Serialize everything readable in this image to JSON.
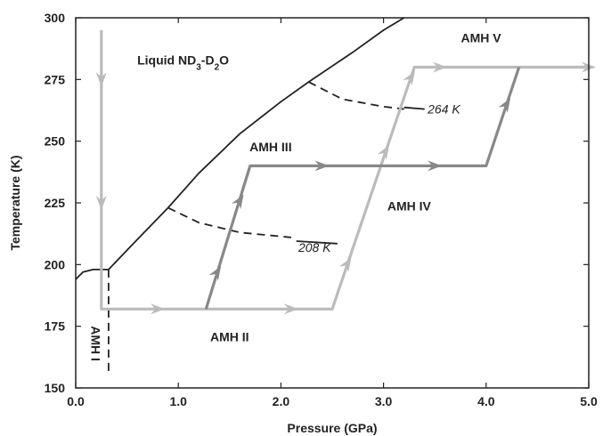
{
  "chart_data": {
    "type": "line",
    "title": "",
    "xlabel": "Pressure (GPa)",
    "ylabel": "Temperature (K)",
    "xlim": [
      0.0,
      5.0
    ],
    "ylim": [
      150,
      300
    ],
    "x_ticks": [
      "0.0",
      "1.0",
      "2.0",
      "3.0",
      "4.0",
      "5.0"
    ],
    "y_ticks": [
      "150",
      "175",
      "200",
      "225",
      "250",
      "275",
      "300"
    ],
    "grid": false,
    "phase_labels": [
      {
        "text": "AMH I",
        "x": 0.15,
        "y": 168
      },
      {
        "text": "AMH II",
        "x": 1.5,
        "y": 169
      },
      {
        "text": "AMH III",
        "x": 1.9,
        "y": 246
      },
      {
        "text": "AMH IV",
        "x": 3.25,
        "y": 222
      },
      {
        "text": "AMH V",
        "x": 3.95,
        "y": 290
      }
    ],
    "liquid_label": {
      "prefix": "Liquid ND",
      "sub1": "3",
      "mid": "-D",
      "sub2": "2",
      "suffix": "O",
      "x": 0.6,
      "y": 281
    },
    "annotations": [
      {
        "text": "264 K",
        "x": 3.43,
        "y": 263
      },
      {
        "text": "208 K",
        "x": 2.17,
        "y": 207
      }
    ],
    "series": [
      {
        "role": "liquidus-low",
        "style": "solid",
        "color": "#222222",
        "points": [
          [
            0.0,
            194
          ],
          [
            0.07,
            197
          ],
          [
            0.17,
            198
          ],
          [
            0.32,
            198
          ]
        ]
      },
      {
        "role": "liquidus",
        "style": "solid",
        "color": "#222222",
        "points": [
          [
            0.32,
            198
          ],
          [
            0.55,
            208
          ],
          [
            0.9,
            223
          ],
          [
            1.2,
            237
          ],
          [
            1.6,
            253
          ],
          [
            2.0,
            266
          ],
          [
            2.27,
            274
          ],
          [
            2.7,
            286
          ],
          [
            3.0,
            295
          ],
          [
            3.2,
            300
          ]
        ]
      },
      {
        "role": "boundary-I-II",
        "style": "dashed",
        "color": "#222222",
        "points": [
          [
            0.32,
            198
          ],
          [
            0.32,
            156
          ]
        ]
      },
      {
        "role": "boundary-208K",
        "style": "dashed",
        "color": "#222222",
        "points": [
          [
            0.9,
            223
          ],
          [
            1.2,
            217
          ],
          [
            1.6,
            213
          ],
          [
            2.1,
            211
          ]
        ]
      },
      {
        "role": "boundary-264K",
        "style": "dashed",
        "color": "#222222",
        "points": [
          [
            2.27,
            274
          ],
          [
            2.6,
            267
          ],
          [
            3.0,
            264
          ],
          [
            3.2,
            263
          ]
        ]
      },
      {
        "role": "leader-264K",
        "style": "solid",
        "color": "#222222",
        "points": [
          [
            3.2,
            263.7
          ],
          [
            3.4,
            263
          ]
        ]
      },
      {
        "role": "leader-208K",
        "style": "solid",
        "color": "#222222",
        "points": [
          [
            2.55,
            208.5
          ],
          [
            2.15,
            209.5
          ]
        ]
      },
      {
        "role": "path-light",
        "style": "solid",
        "color": "#bbbbbb",
        "points": [
          [
            0.25,
            295
          ],
          [
            0.25,
            182
          ],
          [
            2.5,
            182
          ],
          [
            3.3,
            280
          ],
          [
            5.0,
            280
          ]
        ],
        "arrows": [
          {
            "x": 0.25,
            "y": 275,
            "dir": "down"
          },
          {
            "x": 0.25,
            "y": 225,
            "dir": "down"
          },
          {
            "x": 0.8,
            "y": 182,
            "dir": "right"
          },
          {
            "x": 2.1,
            "y": 182,
            "dir": "right"
          },
          {
            "x": 2.65,
            "y": 200.5,
            "dir": "ne"
          },
          {
            "x": 3.02,
            "y": 246,
            "dir": "ne"
          },
          {
            "x": 3.27,
            "y": 276,
            "dir": "ne"
          },
          {
            "x": 3.55,
            "y": 280,
            "dir": "right"
          },
          {
            "x": 5.0,
            "y": 280,
            "dir": "right"
          }
        ]
      },
      {
        "role": "path-dark",
        "style": "solid",
        "color": "#888888",
        "points": [
          [
            1.27,
            182
          ],
          [
            1.7,
            240
          ],
          [
            4.0,
            240
          ],
          [
            4.32,
            280
          ]
        ],
        "arrows": [
          {
            "x": 1.38,
            "y": 197,
            "dir": "ne"
          },
          {
            "x": 1.6,
            "y": 226,
            "dir": "ne"
          },
          {
            "x": 2.4,
            "y": 240,
            "dir": "right"
          },
          {
            "x": 3.5,
            "y": 240,
            "dir": "right"
          },
          {
            "x": 4.2,
            "y": 265,
            "dir": "ne"
          }
        ]
      }
    ]
  }
}
